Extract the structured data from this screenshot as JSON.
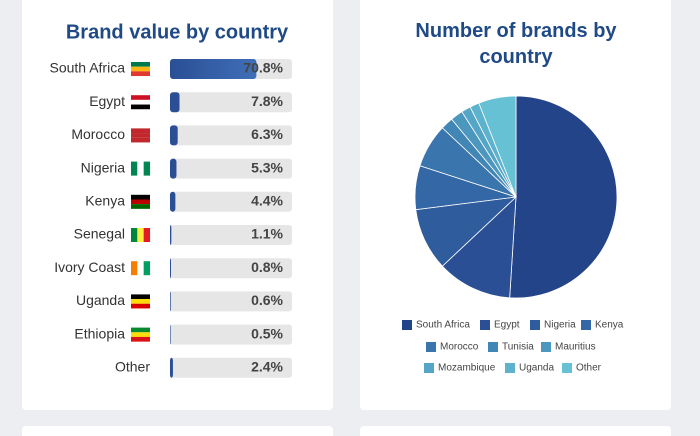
{
  "chart_data": [
    {
      "type": "hbar",
      "title": "Brand value by country",
      "categories": [
        "South Africa",
        "Egypt",
        "Morocco",
        "Nigeria",
        "Kenya",
        "Senegal",
        "Ivory Coast",
        "Uganda",
        "Ethiopia",
        "Other"
      ],
      "values": [
        70.8,
        7.8,
        6.3,
        5.3,
        4.4,
        1.1,
        0.8,
        0.6,
        0.5,
        2.4
      ],
      "value_labels": [
        "70.8%",
        "7.8%",
        "6.3%",
        "5.3%",
        "4.4%",
        "1.1%",
        "0.8%",
        "0.6%",
        "0.5%",
        "2.4%"
      ],
      "xlim": [
        0,
        100
      ],
      "color": "#2a4f95"
    },
    {
      "type": "pie",
      "title": "Number of brands by country",
      "categories": [
        "South Africa",
        "Egypt",
        "Nigeria",
        "Kenya",
        "Morocco",
        "Tunisia",
        "Mauritius",
        "Mozambique",
        "Uganda",
        "Other"
      ],
      "values": [
        51,
        12,
        10,
        7,
        7,
        2,
        2,
        1.5,
        1.5,
        6
      ],
      "colors": [
        "#24448a",
        "#2a4f95",
        "#2e5c9d",
        "#3467a6",
        "#3a76ad",
        "#4286b5",
        "#4c97be",
        "#55a6c6",
        "#5db3cd",
        "#67c1d5"
      ]
    }
  ]
}
